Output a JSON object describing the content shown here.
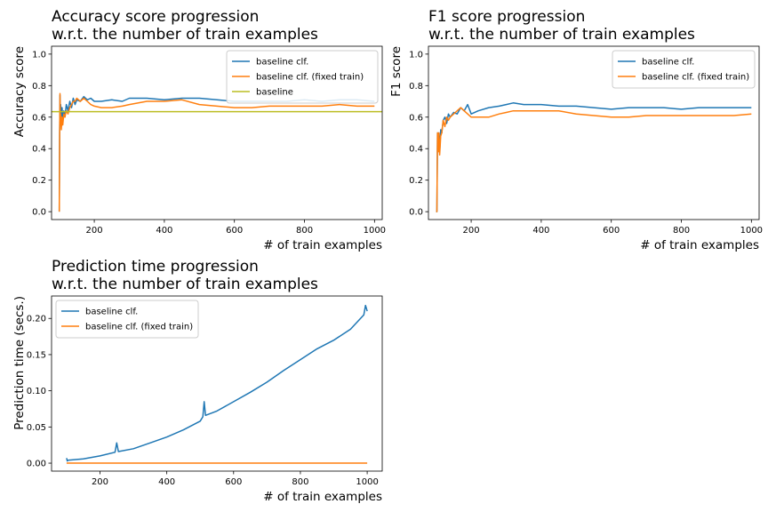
{
  "chart_data": [
    {
      "type": "line",
      "title": [
        "Accuracy score progression",
        "w.r.t. the number of train examples"
      ],
      "xlabel": "# of train examples",
      "ylabel": "Accuracy score",
      "xlim": [
        78,
        1022
      ],
      "ylim": [
        -0.05,
        1.05
      ],
      "xticks": [
        200,
        400,
        600,
        800,
        1000
      ],
      "yticks": [
        0.0,
        0.2,
        0.4,
        0.6,
        0.8,
        1.0
      ],
      "ytick_labels": [
        "0.0",
        "0.2",
        "0.4",
        "0.6",
        "0.8",
        "1.0"
      ],
      "legend_position": "top-right",
      "series": [
        {
          "name": "baseline clf.",
          "color": "#1f77b4",
          "x": [
            100,
            101,
            102,
            103,
            104,
            106,
            108,
            110,
            113,
            116,
            120,
            125,
            130,
            135,
            140,
            145,
            150,
            160,
            170,
            180,
            190,
            200,
            220,
            250,
            280,
            300,
            350,
            400,
            450,
            500,
            550,
            600,
            650,
            700,
            750,
            800,
            850,
            900,
            950,
            1000
          ],
          "y": [
            0.0,
            0.5,
            0.74,
            0.62,
            0.68,
            0.6,
            0.66,
            0.58,
            0.64,
            0.6,
            0.68,
            0.64,
            0.7,
            0.66,
            0.72,
            0.68,
            0.71,
            0.7,
            0.73,
            0.71,
            0.72,
            0.7,
            0.7,
            0.71,
            0.7,
            0.72,
            0.72,
            0.71,
            0.72,
            0.72,
            0.71,
            0.7,
            0.7,
            0.7,
            0.7,
            0.71,
            0.7,
            0.71,
            0.71,
            0.7
          ]
        },
        {
          "name": "baseline clf. (fixed train)",
          "color": "#ff7f0e",
          "x": [
            100,
            101,
            102,
            103,
            104,
            106,
            108,
            110,
            113,
            116,
            120,
            125,
            130,
            135,
            140,
            145,
            150,
            160,
            170,
            180,
            190,
            200,
            220,
            250,
            280,
            300,
            350,
            400,
            450,
            500,
            550,
            600,
            650,
            700,
            750,
            800,
            850,
            900,
            950,
            1000
          ],
          "y": [
            0.0,
            0.48,
            0.75,
            0.55,
            0.62,
            0.52,
            0.6,
            0.55,
            0.62,
            0.6,
            0.64,
            0.62,
            0.66,
            0.68,
            0.7,
            0.7,
            0.72,
            0.7,
            0.72,
            0.7,
            0.68,
            0.67,
            0.66,
            0.66,
            0.67,
            0.68,
            0.7,
            0.7,
            0.71,
            0.68,
            0.67,
            0.66,
            0.66,
            0.67,
            0.67,
            0.67,
            0.67,
            0.68,
            0.67,
            0.67
          ]
        },
        {
          "name": "baseline",
          "color": "#bcbd22",
          "x": [
            78,
            1022
          ],
          "y": [
            0.635,
            0.635
          ]
        }
      ]
    },
    {
      "type": "line",
      "title": [
        "F1 score progression",
        "w.r.t. the number of train examples"
      ],
      "xlabel": "# of train examples",
      "ylabel": "F1 score",
      "xlim": [
        78,
        1022
      ],
      "ylim": [
        -0.05,
        1.05
      ],
      "xticks": [
        200,
        400,
        600,
        800,
        1000
      ],
      "yticks": [
        0.0,
        0.2,
        0.4,
        0.6,
        0.8,
        1.0
      ],
      "ytick_labels": [
        "0.0",
        "0.2",
        "0.4",
        "0.6",
        "0.8",
        "1.0"
      ],
      "legend_position": "top-right",
      "series": [
        {
          "name": "baseline clf.",
          "color": "#1f77b4",
          "x": [
            100,
            101,
            102,
            104,
            106,
            108,
            110,
            113,
            116,
            120,
            125,
            130,
            135,
            140,
            150,
            160,
            170,
            180,
            190,
            200,
            220,
            250,
            280,
            300,
            320,
            350,
            400,
            450,
            500,
            550,
            600,
            650,
            700,
            750,
            800,
            850,
            900,
            950,
            1000
          ],
          "y": [
            0.0,
            0.0,
            0.0,
            0.5,
            0.42,
            0.5,
            0.38,
            0.52,
            0.5,
            0.58,
            0.6,
            0.56,
            0.62,
            0.6,
            0.63,
            0.62,
            0.66,
            0.64,
            0.68,
            0.62,
            0.64,
            0.66,
            0.67,
            0.68,
            0.69,
            0.68,
            0.68,
            0.67,
            0.67,
            0.66,
            0.65,
            0.66,
            0.66,
            0.66,
            0.65,
            0.66,
            0.66,
            0.66,
            0.66
          ]
        },
        {
          "name": "baseline clf. (fixed train)",
          "color": "#ff7f0e",
          "x": [
            100,
            101,
            102,
            104,
            106,
            108,
            110,
            113,
            116,
            120,
            125,
            130,
            135,
            140,
            150,
            160,
            170,
            180,
            190,
            200,
            220,
            250,
            280,
            300,
            320,
            350,
            400,
            450,
            500,
            550,
            600,
            650,
            700,
            750,
            800,
            850,
            900,
            950,
            1000
          ],
          "y": [
            0.0,
            0.0,
            0.0,
            0.5,
            0.38,
            0.5,
            0.36,
            0.48,
            0.5,
            0.58,
            0.54,
            0.6,
            0.58,
            0.6,
            0.62,
            0.64,
            0.66,
            0.64,
            0.62,
            0.6,
            0.6,
            0.6,
            0.62,
            0.63,
            0.64,
            0.64,
            0.64,
            0.64,
            0.62,
            0.61,
            0.6,
            0.6,
            0.61,
            0.61,
            0.61,
            0.61,
            0.61,
            0.61,
            0.62
          ]
        }
      ]
    },
    {
      "type": "line",
      "title": [
        "Prediction time progression",
        "w.r.t. the number of train examples"
      ],
      "xlabel": "# of train examples",
      "ylabel": "Prediction time (secs.)",
      "xlim": [
        55,
        1045
      ],
      "ylim": [
        -0.011,
        0.231
      ],
      "xticks": [
        200,
        400,
        600,
        800,
        1000
      ],
      "yticks": [
        0.0,
        0.05,
        0.1,
        0.15,
        0.2
      ],
      "ytick_labels": [
        "0.00",
        "0.05",
        "0.10",
        "0.15",
        "0.20"
      ],
      "legend_position": "top-left",
      "series": [
        {
          "name": "baseline clf.",
          "color": "#1f77b4",
          "x": [
            100,
            102,
            104,
            150,
            200,
            245,
            250,
            255,
            300,
            350,
            400,
            450,
            500,
            508,
            512,
            516,
            550,
            600,
            650,
            700,
            750,
            800,
            850,
            900,
            950,
            990,
            995,
            1000
          ],
          "y": [
            0.007,
            0.003,
            0.004,
            0.006,
            0.01,
            0.015,
            0.028,
            0.016,
            0.02,
            0.028,
            0.036,
            0.046,
            0.058,
            0.064,
            0.085,
            0.066,
            0.072,
            0.085,
            0.098,
            0.112,
            0.128,
            0.143,
            0.158,
            0.17,
            0.185,
            0.205,
            0.218,
            0.21
          ]
        },
        {
          "name": "baseline clf. (fixed train)",
          "color": "#ff7f0e",
          "x": [
            100,
            1000
          ],
          "y": [
            0.0,
            0.0
          ]
        }
      ]
    }
  ]
}
